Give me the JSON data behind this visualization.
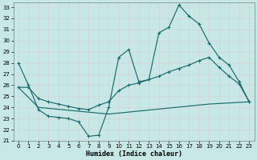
{
  "xlabel": "Humidex (Indice chaleur)",
  "ylabel": "",
  "xlim": [
    -0.5,
    23.5
  ],
  "ylim": [
    21,
    33.4
  ],
  "yticks": [
    21,
    22,
    23,
    24,
    25,
    26,
    27,
    28,
    29,
    30,
    31,
    32,
    33
  ],
  "xticks": [
    0,
    1,
    2,
    3,
    4,
    5,
    6,
    7,
    8,
    9,
    10,
    11,
    12,
    13,
    14,
    15,
    16,
    17,
    18,
    19,
    20,
    21,
    22,
    23
  ],
  "bg_color": "#c8e8e8",
  "grid_color": "#d4d4d4",
  "line_color": "#1a6b6b",
  "line1_x": [
    0,
    1,
    2,
    3,
    4,
    5,
    6,
    7,
    8,
    9,
    10,
    11,
    12,
    13,
    14,
    15,
    16,
    17,
    18,
    19,
    20,
    21,
    22,
    23
  ],
  "line1_y": [
    28,
    26,
    23.8,
    23.2,
    23.1,
    23.0,
    22.7,
    21.4,
    21.5,
    24.0,
    28.5,
    29.2,
    26.3,
    26.5,
    30.7,
    31.2,
    33.2,
    32.2,
    31.5,
    29.8,
    28.5,
    27.8,
    26.3,
    24.5
  ],
  "line2_x": [
    0,
    1,
    2,
    3,
    4,
    5,
    6,
    7,
    8,
    9,
    10,
    11,
    12,
    13,
    14,
    15,
    16,
    17,
    18,
    19,
    20,
    21,
    22,
    23
  ],
  "line2_y": [
    25.8,
    25.8,
    24.8,
    24.5,
    24.3,
    24.1,
    23.9,
    23.8,
    24.2,
    24.5,
    25.5,
    26.0,
    26.2,
    26.5,
    26.8,
    27.2,
    27.5,
    27.8,
    28.2,
    28.5,
    27.6,
    26.8,
    26.1,
    24.5
  ],
  "line3_x": [
    0,
    2,
    9,
    19,
    23
  ],
  "line3_y": [
    25.8,
    24.0,
    23.4,
    24.3,
    24.5
  ]
}
